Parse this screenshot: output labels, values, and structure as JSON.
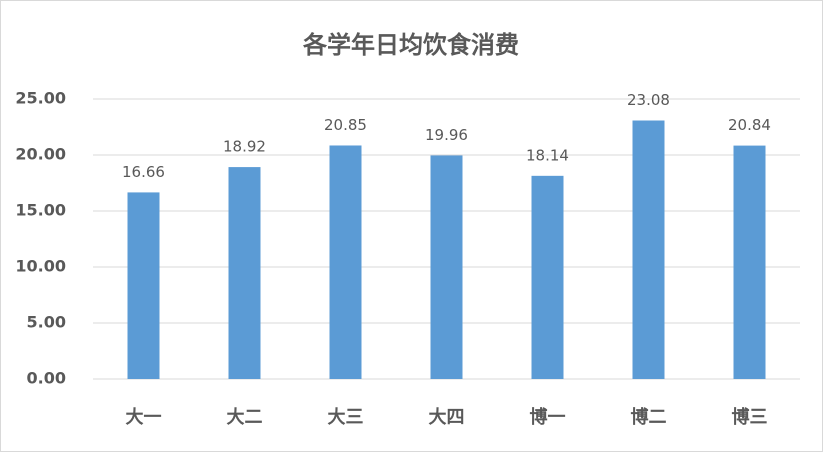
{
  "chart_data": {
    "type": "bar",
    "title": "各学年日均饮食消费",
    "categories": [
      "大一",
      "大二",
      "大三",
      "大四",
      "博一",
      "博二",
      "博三"
    ],
    "values": [
      16.66,
      18.92,
      20.85,
      19.96,
      18.14,
      23.08,
      20.84
    ],
    "color": "#5b9bd5",
    "ylim": [
      0,
      25
    ],
    "yticks": [
      {
        "value": 0,
        "label": "0.00"
      },
      {
        "value": 5,
        "label": "5.00"
      },
      {
        "value": 10,
        "label": "10.00"
      },
      {
        "value": 15,
        "label": "15.00"
      },
      {
        "value": 20,
        "label": "20.00"
      },
      {
        "value": 25,
        "label": "25.00"
      }
    ],
    "grid": true
  }
}
